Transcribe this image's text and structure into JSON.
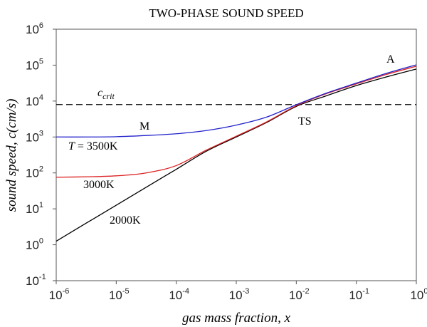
{
  "chart_data": {
    "type": "line",
    "title": "TWO-PHASE SOUND SPEED",
    "xlabel": "gas mass fraction, x",
    "ylabel": "sound speed, c(cm/s)",
    "xscale": "log",
    "yscale": "log",
    "xlim": [
      1e-06,
      1
    ],
    "ylim": [
      0.1,
      1000000
    ],
    "grid": false,
    "x_ticks": [
      {
        "base": "10",
        "exp": "-6"
      },
      {
        "base": "10",
        "exp": "-5"
      },
      {
        "base": "10",
        "exp": "-4"
      },
      {
        "base": "10",
        "exp": "-3"
      },
      {
        "base": "10",
        "exp": "-2"
      },
      {
        "base": "10",
        "exp": "-1"
      },
      {
        "base": "10",
        "exp": "0"
      }
    ],
    "y_ticks": [
      {
        "base": "10",
        "exp": "-1"
      },
      {
        "base": "10",
        "exp": "0"
      },
      {
        "base": "10",
        "exp": "1"
      },
      {
        "base": "10",
        "exp": "2"
      },
      {
        "base": "10",
        "exp": "3"
      },
      {
        "base": "10",
        "exp": "4"
      },
      {
        "base": "10",
        "exp": "5"
      },
      {
        "base": "10",
        "exp": "6"
      }
    ],
    "x": [
      1e-06,
      3.16e-06,
      1e-05,
      3.16e-05,
      0.0001,
      0.000316,
      0.001,
      0.00316,
      0.01,
      0.0316,
      0.1,
      0.316,
      1
    ],
    "series": [
      {
        "name": "T = 3500K",
        "color": "#2222cc",
        "values": [
          1000,
          1000,
          1020,
          1100,
          1230,
          1510,
          2140,
          3550,
          7900,
          16600,
          31600,
          59000,
          102000
        ]
      },
      {
        "name": "3000K",
        "color": "#dd2222",
        "values": [
          76,
          78,
          83,
          100,
          160,
          430,
          1050,
          2600,
          7400,
          16000,
          30000,
          55000,
          93000
        ]
      },
      {
        "name": "2000K",
        "color": "#000000",
        "values": [
          1.26,
          4.0,
          12.6,
          40,
          126,
          400,
          1000,
          2500,
          7100,
          14000,
          27000,
          47000,
          78000
        ]
      }
    ],
    "reference_line": {
      "label_main": "c",
      "label_sub": "crit",
      "value": 8000,
      "style": "dashed",
      "color": "#000000"
    },
    "annotations": {
      "m": "M",
      "ts": "TS",
      "a": "A",
      "t_italic": "T",
      "t3500_rest": " = 3500K",
      "t3000": "3000K",
      "t2000": "2000K"
    }
  }
}
